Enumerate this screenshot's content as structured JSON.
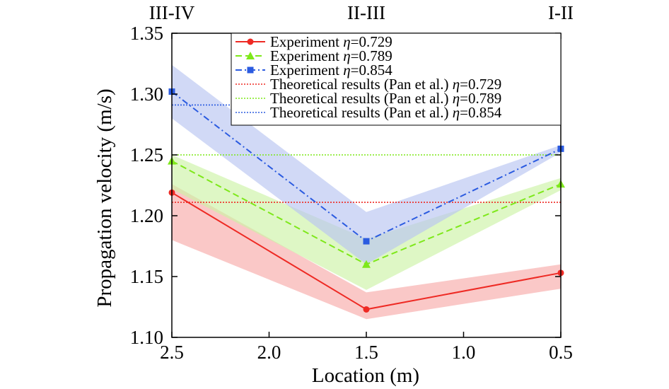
{
  "chart_data": {
    "type": "line",
    "xlabel": "Location (m)",
    "ylabel": "Propagation velocity (m/s)",
    "x": [
      2.5,
      1.5,
      0.5
    ],
    "xlim": [
      2.5,
      0.5
    ],
    "ylim": [
      1.1,
      1.35
    ],
    "x_ticks": [
      "2.5",
      "2.0",
      "1.5",
      "1.0",
      "0.5"
    ],
    "y_ticks": [
      "1.10",
      "1.15",
      "1.20",
      "1.25",
      "1.30",
      "1.35"
    ],
    "region_labels": [
      "III-IV",
      "II-III",
      "I-II"
    ],
    "legend_position": "top-right",
    "series": [
      {
        "name": "Experiment η=0.729",
        "legend_prefix": "Experiment ",
        "legend_eta": "η",
        "legend_value": "=0.729",
        "color": "#ee2a24",
        "band_color": "#f7aba9",
        "dash": "solid",
        "marker": "circle",
        "values": [
          1.219,
          1.123,
          1.153
        ],
        "band_lower": [
          1.18,
          1.115,
          1.14
        ],
        "band_upper": [
          1.226,
          1.137,
          1.16
        ]
      },
      {
        "name": "Experiment η=0.789",
        "legend_prefix": "Experiment ",
        "legend_eta": "η",
        "legend_value": "=0.789",
        "color": "#7ee81a",
        "band_color": "#cdf3a6",
        "dash": "dashed",
        "marker": "triangle",
        "values": [
          1.245,
          1.16,
          1.226
        ],
        "band_lower": [
          1.222,
          1.139,
          1.221
        ],
        "band_upper": [
          1.25,
          1.181,
          1.231
        ]
      },
      {
        "name": "Experiment η=0.854",
        "legend_prefix": "Experiment ",
        "legend_eta": "η",
        "legend_value": "=0.854",
        "color": "#2b5be0",
        "band_color": "#b8c4f1",
        "dash": "dashdot",
        "marker": "square",
        "values": [
          1.302,
          1.179,
          1.255
        ],
        "band_lower": [
          1.28,
          1.16,
          1.252
        ],
        "band_upper": [
          1.324,
          1.203,
          1.258
        ]
      },
      {
        "name": "Theoretical results (Pan et al.) η=0.729",
        "legend_prefix": "Theoretical results (Pan et al.) ",
        "legend_eta": "η",
        "legend_value": "=0.729",
        "color": "#ee2a24",
        "dash": "dotted",
        "marker": "none",
        "values": [
          1.211,
          1.211,
          1.211
        ]
      },
      {
        "name": "Theoretical results (Pan et al.) η=0.789",
        "legend_prefix": "Theoretical results (Pan et al.) ",
        "legend_eta": "η",
        "legend_value": "=0.789",
        "color": "#7ee81a",
        "dash": "dotted",
        "marker": "none",
        "values": [
          1.25,
          1.25,
          1.25
        ]
      },
      {
        "name": "Theoretical results (Pan et al.) η=0.854",
        "legend_prefix": "Theoretical results (Pan et al.) ",
        "legend_eta": "η",
        "legend_value": "=0.854",
        "color": "#2b5be0",
        "dash": "dotted",
        "marker": "none",
        "values": [
          1.291,
          1.291,
          1.291
        ]
      }
    ]
  }
}
